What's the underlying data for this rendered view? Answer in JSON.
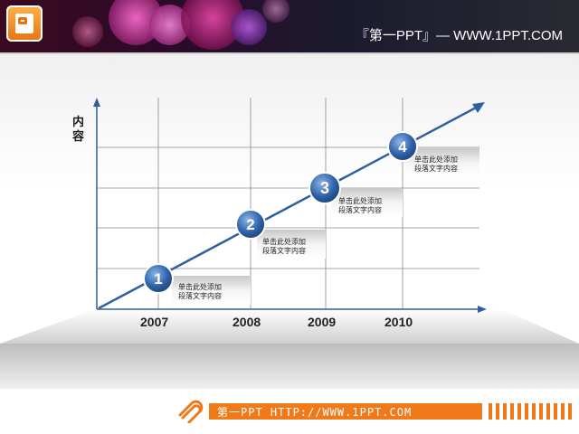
{
  "header": {
    "title": "『第一PPT』— WWW.1PPT.COM"
  },
  "chart": {
    "y_label": "内容",
    "years": [
      "2007",
      "2008",
      "2009",
      "2010"
    ],
    "steps": [
      {
        "number": "1",
        "line1": "单击此处添加",
        "line2": "段落文字内容"
      },
      {
        "number": "2",
        "line1": "单击此处添加",
        "line2": "段落文字内容"
      },
      {
        "number": "3",
        "line1": "单击此处添加",
        "line2": "段落文字内容"
      },
      {
        "number": "4",
        "line1": "单击此处添加",
        "line2": "段落文字内容"
      }
    ]
  },
  "footer": {
    "text": "第一PPT HTTP://WWW.1PPT.COM"
  },
  "colors": {
    "accent_orange": "#f07a1a",
    "arrow_blue": "#2f5f9e",
    "circle_blue": "#2c5f9e"
  }
}
